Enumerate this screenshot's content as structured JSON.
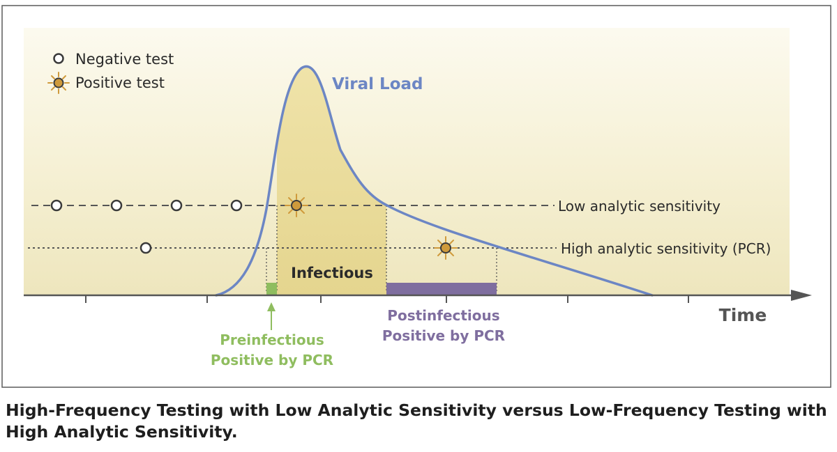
{
  "legend": {
    "negative": "Negative test",
    "positive": "Positive test"
  },
  "labels": {
    "viral_load": "Viral Load",
    "low_sensitivity": "Low analytic sensitivity",
    "high_sensitivity": "High analytic sensitivity (PCR)",
    "infectious": "Infectious",
    "time": "Time",
    "preinfectious_line1": "Preinfectious",
    "preinfectious_line2": "Positive by PCR",
    "postinfectious_line1": "Postinfectious",
    "postinfectious_line2": "Positive by PCR"
  },
  "caption": "High-Frequency Testing with Low Analytic Sensitivity versus Low-Frequency Testing with High Analytic Sensitivity.",
  "colors": {
    "curve": "#6c86c4",
    "panel": "#f2ecc6",
    "infectious_fill": "#e4d48c",
    "preinfectious": "#8fbd5f",
    "postinfectious": "#7f6e9f",
    "positive_marker": "#cf9a3c",
    "border": "#5a5a5a"
  },
  "icons": {
    "negative": "open-circle-icon",
    "positive": "starburst-circle-icon"
  }
}
